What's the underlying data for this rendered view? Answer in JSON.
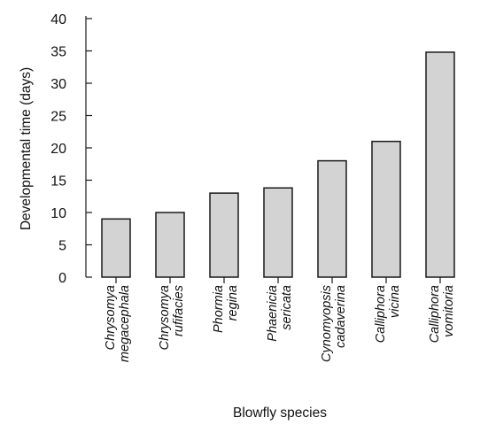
{
  "chart_data": {
    "type": "bar",
    "title": "",
    "xlabel": "Blowfly species",
    "ylabel": "Developmental time (days)",
    "ylim": [
      0,
      40
    ],
    "yticks": [
      0,
      5,
      10,
      15,
      20,
      25,
      30,
      35,
      40
    ],
    "categories": [
      [
        "Chrysomya",
        "megacephala"
      ],
      [
        "Chrysomya",
        "rufifacies"
      ],
      [
        "Phormia",
        "regina"
      ],
      [
        "Phaenicia",
        "sericata"
      ],
      [
        "Cynomyopsis",
        "cadaverina"
      ],
      [
        "Calliphora",
        "vicina"
      ],
      [
        "Calliphora",
        "vomitoria"
      ]
    ],
    "values": [
      9,
      10,
      13,
      13.8,
      18,
      21,
      34.8
    ],
    "bar_color": "#d3d3d3",
    "edge_color": "#1a1a1a",
    "grid": false,
    "legend": false
  }
}
